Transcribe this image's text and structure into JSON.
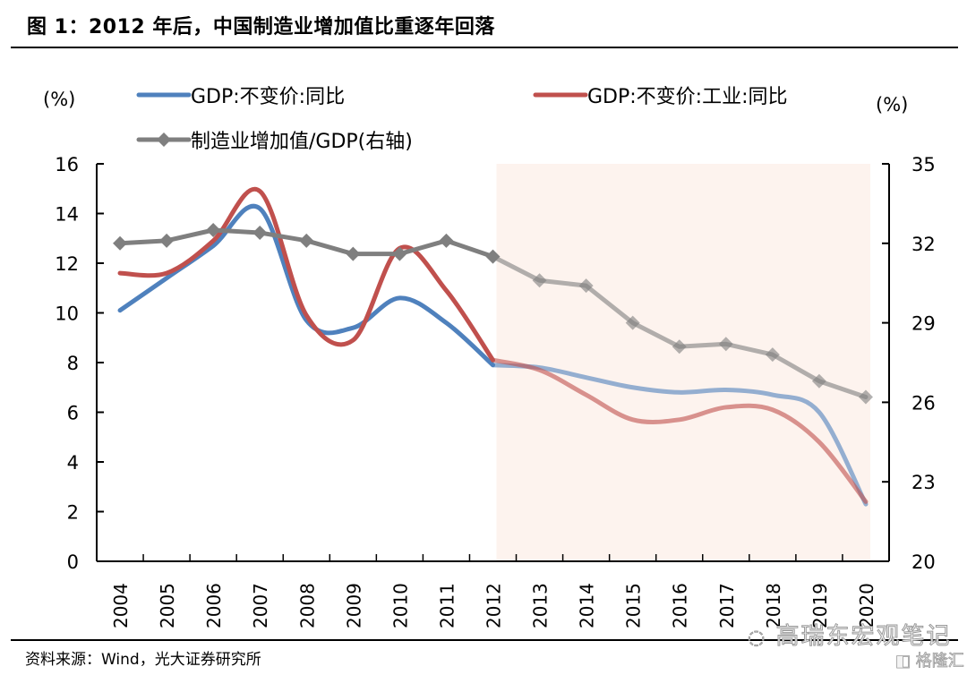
{
  "header": {
    "title": "图 1：2012 年后，中国制造业增加值比重逐年回落"
  },
  "footer": {
    "source": "资料来源：Wind，光大证券研究所",
    "watermark": "高瑞东宏观笔记",
    "watermark_icon": "wechat-icon",
    "watermark2": "格隆汇",
    "watermark2_icon": "gelonghui-logo-icon"
  },
  "chart_data": {
    "type": "line",
    "title": "2012 年后，中国制造业增加值比重逐年回落",
    "xlabel": "",
    "ylabel": "(%)",
    "y2label": "(%)",
    "categories": [
      "2004",
      "2005",
      "2006",
      "2007",
      "2008",
      "2009",
      "2010",
      "2011",
      "2012",
      "2013",
      "2014",
      "2015",
      "2016",
      "2017",
      "2018",
      "2019",
      "2020"
    ],
    "ylim": [
      0,
      16
    ],
    "yticks": [
      0,
      2,
      4,
      6,
      8,
      10,
      12,
      14,
      16
    ],
    "y2lim": [
      20,
      35
    ],
    "y2ticks": [
      20,
      23,
      26,
      29,
      32,
      35
    ],
    "grid": false,
    "legend_position": "top",
    "highlight_region": {
      "from": "2012",
      "to": "2020",
      "color": "#fdf3ee"
    },
    "series": [
      {
        "name": "GDP:不变价:同比",
        "axis": "left",
        "color": "#4f81bd",
        "smooth": true,
        "markers": false,
        "values": [
          10.1,
          11.4,
          12.7,
          14.2,
          9.7,
          9.4,
          10.6,
          9.6,
          7.9,
          7.8,
          7.4,
          7.0,
          6.8,
          6.9,
          6.7,
          6.0,
          2.3
        ]
      },
      {
        "name": "GDP:不变价:工业:同比",
        "axis": "left",
        "color": "#c0504d",
        "smooth": true,
        "markers": false,
        "values": [
          11.6,
          11.6,
          12.9,
          14.9,
          9.9,
          8.9,
          12.6,
          10.9,
          8.1,
          7.7,
          6.7,
          5.7,
          5.7,
          6.2,
          6.1,
          4.8,
          2.4
        ]
      },
      {
        "name": "制造业增加值/GDP(右轴)",
        "axis": "right",
        "color": "#7f7f7f",
        "smooth": false,
        "markers": true,
        "values": [
          32.0,
          32.1,
          32.5,
          32.4,
          32.1,
          31.6,
          31.6,
          32.1,
          31.5,
          30.6,
          30.4,
          29.0,
          28.1,
          28.2,
          27.8,
          26.8,
          26.2
        ]
      }
    ]
  }
}
